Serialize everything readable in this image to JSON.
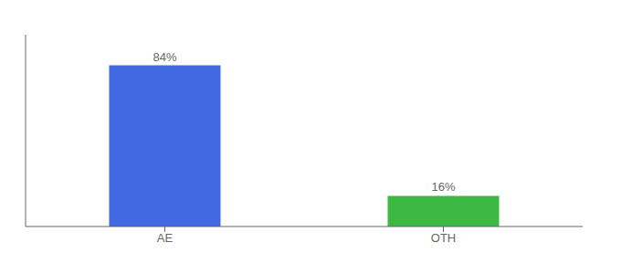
{
  "chart_data": {
    "type": "bar",
    "categories": [
      "AE",
      "OTH"
    ],
    "values": [
      84,
      16
    ],
    "colors": [
      "#4169E1",
      "#3CB843"
    ],
    "value_labels": [
      "84%",
      "16%"
    ],
    "data_labels": true,
    "ylim": [
      0,
      100
    ],
    "tick_labels": "x",
    "grid": false
  }
}
